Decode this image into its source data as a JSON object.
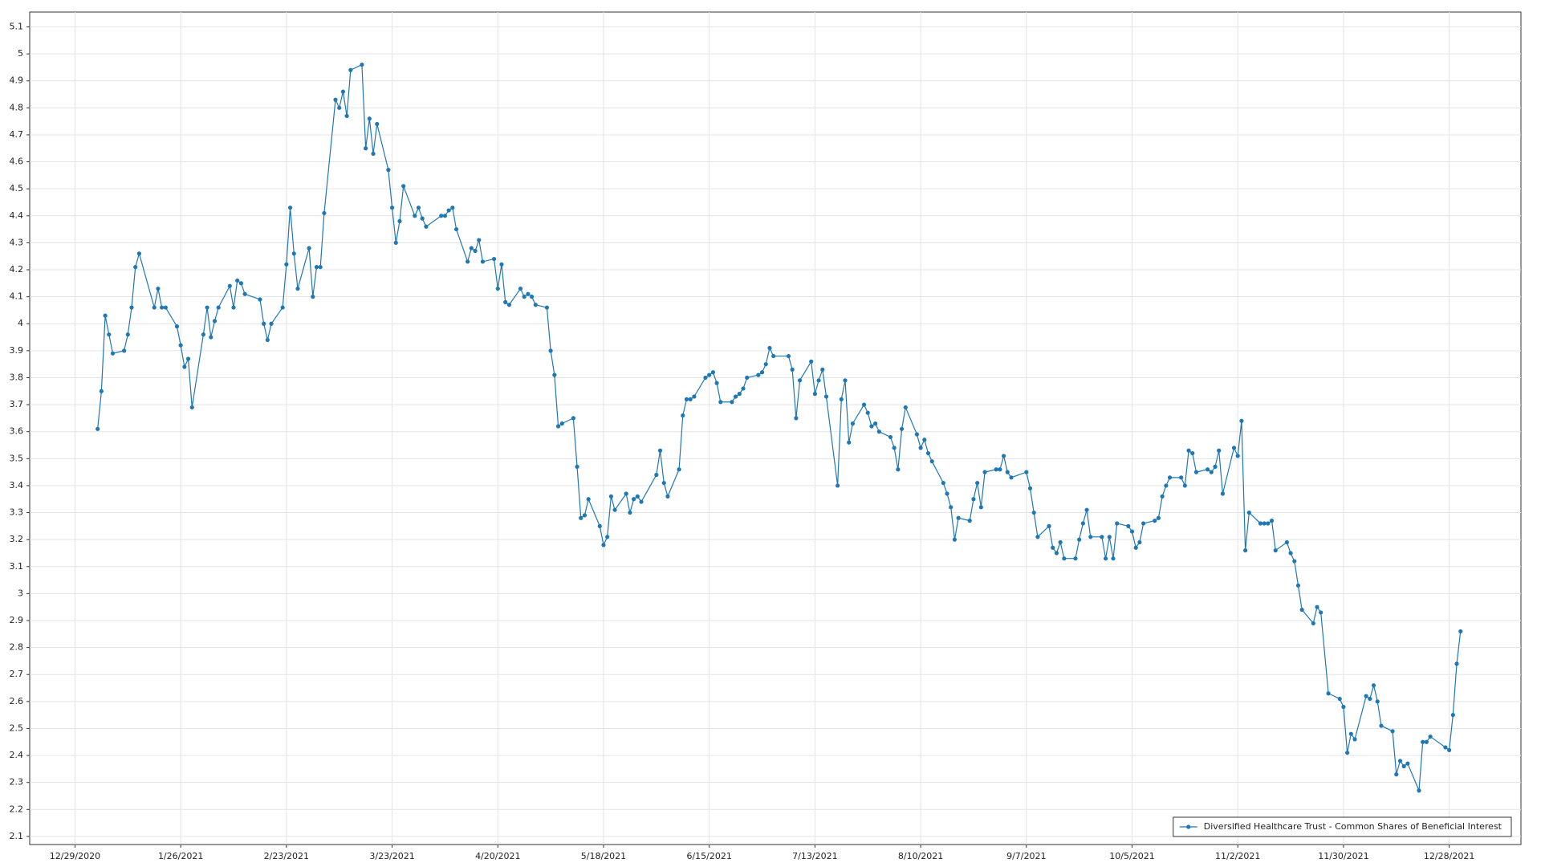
{
  "chart_data": {
    "type": "line",
    "x": [
      "1/4/2021",
      "1/5/2021",
      "1/6/2021",
      "1/7/2021",
      "1/8/2021",
      "1/11/2021",
      "1/12/2021",
      "1/13/2021",
      "1/14/2021",
      "1/15/2021",
      "1/19/2021",
      "1/20/2021",
      "1/21/2021",
      "1/22/2021",
      "1/25/2021",
      "1/26/2021",
      "1/27/2021",
      "1/28/2021",
      "1/29/2021",
      "2/1/2021",
      "2/2/2021",
      "2/3/2021",
      "2/4/2021",
      "2/5/2021",
      "2/8/2021",
      "2/9/2021",
      "2/10/2021",
      "2/11/2021",
      "2/12/2021",
      "2/16/2021",
      "2/17/2021",
      "2/18/2021",
      "2/19/2021",
      "2/22/2021",
      "2/23/2021",
      "2/24/2021",
      "2/25/2021",
      "2/26/2021",
      "3/1/2021",
      "3/2/2021",
      "3/3/2021",
      "3/4/2021",
      "3/5/2021",
      "3/8/2021",
      "3/9/2021",
      "3/10/2021",
      "3/11/2021",
      "3/12/2021",
      "3/15/2021",
      "3/16/2021",
      "3/17/2021",
      "3/18/2021",
      "3/19/2021",
      "3/22/2021",
      "3/23/2021",
      "3/24/2021",
      "3/25/2021",
      "3/26/2021",
      "3/29/2021",
      "3/30/2021",
      "3/31/2021",
      "4/1/2021",
      "4/5/2021",
      "4/6/2021",
      "4/7/2021",
      "4/8/2021",
      "4/9/2021",
      "4/12/2021",
      "4/13/2021",
      "4/14/2021",
      "4/15/2021",
      "4/16/2021",
      "4/19/2021",
      "4/20/2021",
      "4/21/2021",
      "4/22/2021",
      "4/23/2021",
      "4/26/2021",
      "4/27/2021",
      "4/28/2021",
      "4/29/2021",
      "4/30/2021",
      "5/3/2021",
      "5/4/2021",
      "5/5/2021",
      "5/6/2021",
      "5/7/2021",
      "5/10/2021",
      "5/11/2021",
      "5/12/2021",
      "5/13/2021",
      "5/14/2021",
      "5/17/2021",
      "5/18/2021",
      "5/19/2021",
      "5/20/2021",
      "5/21/2021",
      "5/24/2021",
      "5/25/2021",
      "5/26/2021",
      "5/27/2021",
      "5/28/2021",
      "6/1/2021",
      "6/2/2021",
      "6/3/2021",
      "6/4/2021",
      "6/7/2021",
      "6/8/2021",
      "6/9/2021",
      "6/10/2021",
      "6/11/2021",
      "6/14/2021",
      "6/15/2021",
      "6/16/2021",
      "6/17/2021",
      "6/18/2021",
      "6/21/2021",
      "6/22/2021",
      "6/23/2021",
      "6/24/2021",
      "6/25/2021",
      "6/28/2021",
      "6/29/2021",
      "6/30/2021",
      "7/1/2021",
      "7/2/2021",
      "7/6/2021",
      "7/7/2021",
      "7/8/2021",
      "7/9/2021",
      "7/12/2021",
      "7/13/2021",
      "7/14/2021",
      "7/15/2021",
      "7/16/2021",
      "7/19/2021",
      "7/20/2021",
      "7/21/2021",
      "7/22/2021",
      "7/23/2021",
      "7/26/2021",
      "7/27/2021",
      "7/28/2021",
      "7/29/2021",
      "7/30/2021",
      "8/2/2021",
      "8/3/2021",
      "8/4/2021",
      "8/5/2021",
      "8/6/2021",
      "8/9/2021",
      "8/10/2021",
      "8/11/2021",
      "8/12/2021",
      "8/13/2021",
      "8/16/2021",
      "8/17/2021",
      "8/18/2021",
      "8/19/2021",
      "8/20/2021",
      "8/23/2021",
      "8/24/2021",
      "8/25/2021",
      "8/26/2021",
      "8/27/2021",
      "8/30/2021",
      "8/31/2021",
      "9/1/2021",
      "9/2/2021",
      "9/3/2021",
      "9/7/2021",
      "9/8/2021",
      "9/9/2021",
      "9/10/2021",
      "9/13/2021",
      "9/14/2021",
      "9/15/2021",
      "9/16/2021",
      "9/17/2021",
      "9/20/2021",
      "9/21/2021",
      "9/22/2021",
      "9/23/2021",
      "9/24/2021",
      "9/27/2021",
      "9/28/2021",
      "9/29/2021",
      "9/30/2021",
      "10/1/2021",
      "10/4/2021",
      "10/5/2021",
      "10/6/2021",
      "10/7/2021",
      "10/8/2021",
      "10/11/2021",
      "10/12/2021",
      "10/13/2021",
      "10/14/2021",
      "10/15/2021",
      "10/18/2021",
      "10/19/2021",
      "10/20/2021",
      "10/21/2021",
      "10/22/2021",
      "10/25/2021",
      "10/26/2021",
      "10/27/2021",
      "10/28/2021",
      "10/29/2021",
      "11/1/2021",
      "11/2/2021",
      "11/3/2021",
      "11/4/2021",
      "11/5/2021",
      "11/8/2021",
      "11/9/2021",
      "11/10/2021",
      "11/11/2021",
      "11/12/2021",
      "11/15/2021",
      "11/16/2021",
      "11/17/2021",
      "11/18/2021",
      "11/19/2021",
      "11/22/2021",
      "11/23/2021",
      "11/24/2021",
      "11/26/2021",
      "11/29/2021",
      "11/30/2021",
      "12/1/2021",
      "12/2/2021",
      "12/3/2021",
      "12/6/2021",
      "12/7/2021",
      "12/8/2021",
      "12/9/2021",
      "12/10/2021",
      "12/13/2021",
      "12/14/2021",
      "12/15/2021",
      "12/16/2021",
      "12/17/2021",
      "12/20/2021",
      "12/21/2021",
      "12/22/2021",
      "12/23/2021",
      "12/27/2021",
      "12/28/2021",
      "12/29/2021",
      "12/30/2021",
      "12/31/2021"
    ],
    "series": [
      {
        "name": "Diversified Healthcare Trust  - Common Shares of Beneficial Interest",
        "color": "#1f77b4",
        "values": [
          3.61,
          3.75,
          4.03,
          3.96,
          3.89,
          3.9,
          3.96,
          4.06,
          4.21,
          4.26,
          4.06,
          4.13,
          4.06,
          4.06,
          3.99,
          3.92,
          3.84,
          3.87,
          3.69,
          3.96,
          4.06,
          3.95,
          4.01,
          4.06,
          4.14,
          4.06,
          4.16,
          4.15,
          4.11,
          4.09,
          4.0,
          3.94,
          4.0,
          4.06,
          4.22,
          4.43,
          4.26,
          4.13,
          4.28,
          4.1,
          4.21,
          4.21,
          4.41,
          4.83,
          4.8,
          4.86,
          4.77,
          4.94,
          4.96,
          4.65,
          4.76,
          4.63,
          4.74,
          4.57,
          4.43,
          4.3,
          4.38,
          4.51,
          4.4,
          4.43,
          4.39,
          4.36,
          4.4,
          4.4,
          4.42,
          4.43,
          4.35,
          4.23,
          4.28,
          4.27,
          4.31,
          4.23,
          4.24,
          4.13,
          4.22,
          4.08,
          4.07,
          4.13,
          4.1,
          4.11,
          4.1,
          4.07,
          4.06,
          3.9,
          3.81,
          3.62,
          3.63,
          3.65,
          3.47,
          3.28,
          3.29,
          3.35,
          3.25,
          3.18,
          3.21,
          3.36,
          3.31,
          3.37,
          3.3,
          3.35,
          3.36,
          3.34,
          3.44,
          3.53,
          3.41,
          3.36,
          3.46,
          3.66,
          3.72,
          3.72,
          3.73,
          3.8,
          3.81,
          3.82,
          3.78,
          3.71,
          3.71,
          3.73,
          3.74,
          3.76,
          3.8,
          3.81,
          3.82,
          3.85,
          3.91,
          3.88,
          3.88,
          3.83,
          3.65,
          3.79,
          3.86,
          3.74,
          3.79,
          3.83,
          3.73,
          3.4,
          3.72,
          3.79,
          3.56,
          3.63,
          3.7,
          3.67,
          3.62,
          3.63,
          3.6,
          3.58,
          3.54,
          3.46,
          3.61,
          3.69,
          3.59,
          3.54,
          3.57,
          3.52,
          3.49,
          3.41,
          3.37,
          3.32,
          3.2,
          3.28,
          3.27,
          3.35,
          3.41,
          3.32,
          3.45,
          3.46,
          3.46,
          3.51,
          3.45,
          3.43,
          3.45,
          3.39,
          3.3,
          3.21,
          3.25,
          3.17,
          3.15,
          3.19,
          3.13,
          3.13,
          3.2,
          3.26,
          3.31,
          3.21,
          3.21,
          3.13,
          3.21,
          3.13,
          3.26,
          3.25,
          3.23,
          3.17,
          3.19,
          3.26,
          3.27,
          3.28,
          3.36,
          3.4,
          3.43,
          3.43,
          3.4,
          3.53,
          3.52,
          3.45,
          3.46,
          3.45,
          3.47,
          3.53,
          3.37,
          3.54,
          3.51,
          3.64,
          3.16,
          3.3,
          3.26,
          3.26,
          3.26,
          3.27,
          3.16,
          3.19,
          3.15,
          3.12,
          3.03,
          2.94,
          2.89,
          2.95,
          2.93,
          2.63,
          2.61,
          2.58,
          2.41,
          2.48,
          2.46,
          2.62,
          2.61,
          2.66,
          2.6,
          2.51,
          2.49,
          2.33,
          2.38,
          2.36,
          2.37,
          2.27,
          2.45,
          2.45,
          2.47,
          2.43,
          2.42,
          2.55,
          2.74,
          2.86
        ]
      }
    ],
    "xlim": [
      "12/17/2020",
      "1/16/2022"
    ],
    "xticks": [
      "12/29/2020",
      "1/26/2021",
      "2/23/2021",
      "3/23/2021",
      "4/20/2021",
      "5/18/2021",
      "6/15/2021",
      "7/13/2021",
      "8/10/2021",
      "9/7/2021",
      "10/5/2021",
      "11/2/2021",
      "11/30/2021",
      "12/28/2021"
    ],
    "ylim": [
      2.07,
      5.155
    ],
    "yticks": [
      2.1,
      2.2,
      2.3,
      2.4,
      2.5,
      2.6,
      2.7,
      2.8,
      2.9,
      3,
      3.1,
      3.2,
      3.3,
      3.4,
      3.5,
      3.6,
      3.7,
      3.8,
      3.9,
      4,
      4.1,
      4.2,
      4.3,
      4.4,
      4.5,
      4.6,
      4.7,
      4.8,
      4.9,
      5,
      5.1
    ],
    "grid": true,
    "legend": "bottom-right"
  }
}
